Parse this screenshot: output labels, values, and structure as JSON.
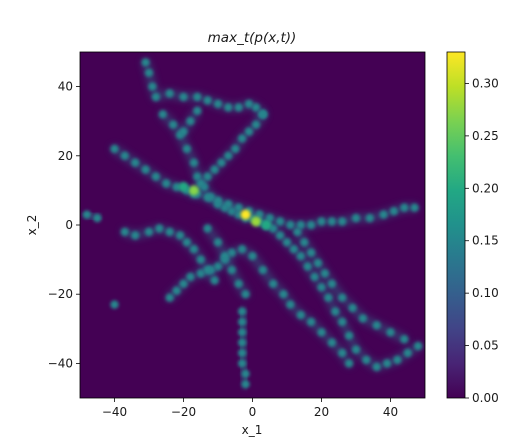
{
  "chart_data": {
    "type": "heatmap",
    "title": "max_t(p(x,t))",
    "xlabel": "x_1",
    "ylabel": "x_2",
    "xlim": [
      -50,
      50
    ],
    "ylim": [
      -50,
      50
    ],
    "xticks": [
      -40,
      -20,
      0,
      20,
      40
    ],
    "yticks": [
      -40,
      -20,
      0,
      20,
      40
    ],
    "colormap": "viridis",
    "background_value": 0.0,
    "colorbar": {
      "range": [
        0.0,
        0.33
      ],
      "ticks": [
        0.0,
        0.05,
        0.1,
        0.15,
        0.2,
        0.25,
        0.3
      ],
      "tick_labels": [
        "0.00",
        "0.05",
        "0.10",
        "0.15",
        "0.20",
        "0.25",
        "0.30"
      ]
    },
    "trajectories": [
      {
        "points": [
          [
            -31,
            47
          ],
          [
            -30,
            44
          ],
          [
            -29,
            40
          ],
          [
            -28,
            37
          ],
          [
            -24,
            38
          ],
          [
            -20,
            37
          ],
          [
            -16,
            37
          ],
          [
            -13,
            36
          ],
          [
            -10,
            35
          ],
          [
            -7,
            34
          ],
          [
            -4,
            34
          ],
          [
            -1,
            35
          ],
          [
            1,
            34
          ],
          [
            3,
            32
          ]
        ]
      },
      {
        "points": [
          [
            -26,
            32
          ],
          [
            -23,
            29
          ],
          [
            -21,
            26
          ],
          [
            -19,
            22
          ],
          [
            -17,
            18
          ],
          [
            -16,
            14
          ],
          [
            -14,
            11
          ],
          [
            -12,
            8
          ],
          [
            -10,
            6
          ],
          [
            -8,
            5
          ],
          [
            -6,
            4
          ],
          [
            -4,
            3
          ],
          [
            -2,
            2
          ],
          [
            0,
            2
          ],
          [
            2,
            1
          ],
          [
            4,
            0
          ],
          [
            6,
            -1
          ],
          [
            8,
            -3
          ],
          [
            10,
            -5
          ],
          [
            12,
            -7
          ],
          [
            14,
            -9
          ],
          [
            16,
            -12
          ],
          [
            18,
            -15
          ],
          [
            20,
            -18
          ],
          [
            22,
            -21
          ],
          [
            24,
            -25
          ],
          [
            26,
            -28
          ],
          [
            28,
            -32
          ],
          [
            30,
            -36
          ],
          [
            33,
            -39
          ],
          [
            36,
            -41
          ],
          [
            39,
            -40
          ],
          [
            42,
            -39
          ],
          [
            45,
            -37
          ],
          [
            48,
            -35
          ]
        ]
      },
      {
        "points": [
          [
            -40,
            22
          ],
          [
            -37,
            20
          ],
          [
            -34,
            18
          ],
          [
            -31,
            16
          ],
          [
            -28,
            14
          ],
          [
            -25,
            12
          ],
          [
            -22,
            11
          ],
          [
            -19,
            10
          ],
          [
            -16,
            9
          ],
          [
            -13,
            8
          ],
          [
            -10,
            7
          ],
          [
            -7,
            6
          ],
          [
            -4,
            5
          ],
          [
            -1,
            4
          ],
          [
            2,
            3
          ],
          [
            5,
            2
          ],
          [
            8,
            1
          ],
          [
            11,
            0
          ],
          [
            14,
            0
          ],
          [
            17,
            0
          ],
          [
            20,
            1
          ],
          [
            23,
            1
          ],
          [
            26,
            1
          ],
          [
            30,
            2
          ],
          [
            34,
            2
          ],
          [
            38,
            3
          ],
          [
            41,
            4
          ],
          [
            44,
            5
          ],
          [
            47,
            5
          ]
        ]
      },
      {
        "points": [
          [
            3,
            32
          ],
          [
            1,
            29
          ],
          [
            -1,
            27
          ],
          [
            -3,
            25
          ],
          [
            -5,
            22
          ],
          [
            -7,
            20
          ],
          [
            -9,
            18
          ],
          [
            -11,
            16
          ],
          [
            -13,
            14
          ],
          [
            -15,
            12
          ],
          [
            -17,
            9
          ]
        ]
      },
      {
        "points": [
          [
            -24,
            -21
          ],
          [
            -22,
            -19
          ],
          [
            -20,
            -17
          ],
          [
            -18,
            -15
          ],
          [
            -15,
            -14
          ],
          [
            -12,
            -13
          ],
          [
            -10,
            -12
          ],
          [
            -8,
            -10
          ],
          [
            -6,
            -8
          ],
          [
            -3,
            -7
          ],
          [
            0,
            -9
          ],
          [
            3,
            -13
          ],
          [
            6,
            -17
          ],
          [
            9,
            -20
          ],
          [
            11,
            -23
          ],
          [
            14,
            -26
          ],
          [
            17,
            -28
          ],
          [
            20,
            -31
          ],
          [
            23,
            -34
          ],
          [
            26,
            -37
          ],
          [
            28,
            -40
          ]
        ]
      },
      {
        "points": [
          [
            -3,
            -25
          ],
          [
            -3,
            -28
          ],
          [
            -3,
            -31
          ],
          [
            -3,
            -34
          ],
          [
            -3,
            -37
          ],
          [
            -3,
            -40
          ],
          [
            -2,
            -43
          ],
          [
            -2,
            -46
          ]
        ]
      },
      {
        "points": [
          [
            -37,
            -2
          ],
          [
            -34,
            -3
          ],
          [
            -30,
            -2
          ],
          [
            -27,
            -1
          ],
          [
            -24,
            -2
          ],
          [
            -21,
            -3
          ],
          [
            -19,
            -5
          ],
          [
            -17,
            -7
          ],
          [
            -15,
            -10
          ],
          [
            -13,
            -13
          ],
          [
            -11,
            -16
          ]
        ]
      },
      {
        "points": [
          [
            -13,
            -1
          ],
          [
            -10,
            -5
          ],
          [
            -8,
            -9
          ],
          [
            -6,
            -13
          ],
          [
            -4,
            -17
          ],
          [
            -2,
            -20
          ]
        ]
      },
      {
        "points": [
          [
            13,
            -2
          ],
          [
            15,
            -5
          ],
          [
            17,
            -8
          ],
          [
            19,
            -11
          ],
          [
            21,
            -14
          ],
          [
            23,
            -17
          ],
          [
            26,
            -21
          ],
          [
            29,
            -24
          ],
          [
            32,
            -27
          ],
          [
            36,
            -29
          ],
          [
            40,
            -31
          ],
          [
            44,
            -33
          ]
        ]
      },
      {
        "points": [
          [
            -20,
            27
          ],
          [
            -18,
            30
          ],
          [
            -16,
            33
          ]
        ]
      },
      {
        "points": [
          [
            -45,
            2
          ],
          [
            -48,
            3
          ]
        ]
      },
      {
        "points": [
          [
            -40,
            -23
          ]
        ]
      }
    ],
    "hotspots": [
      {
        "x": -2,
        "y": 3,
        "value": 0.33
      },
      {
        "x": 1,
        "y": 1,
        "value": 0.28
      },
      {
        "x": -17,
        "y": 10,
        "value": 0.27
      },
      {
        "x": -20,
        "y": 11,
        "value": 0.2
      },
      {
        "x": 4,
        "y": 0,
        "value": 0.2
      }
    ]
  }
}
